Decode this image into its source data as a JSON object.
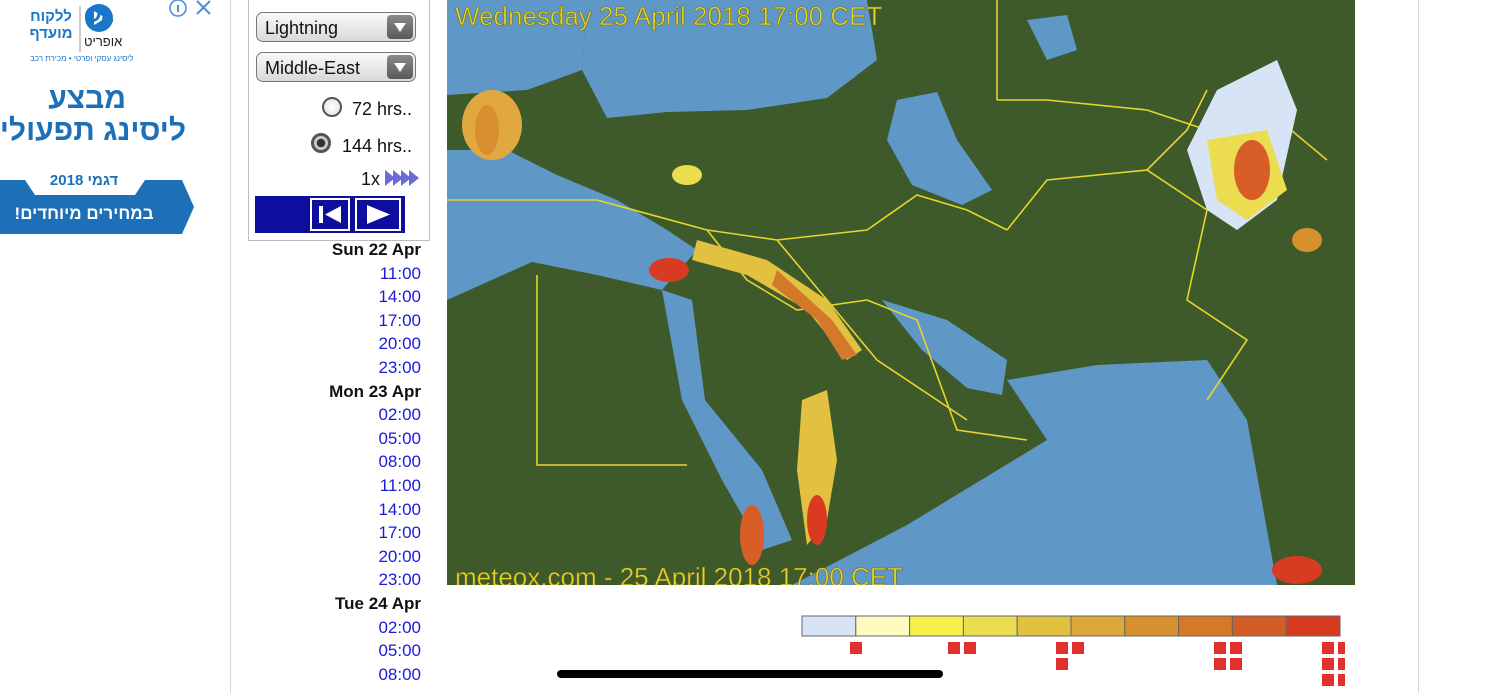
{
  "ad": {
    "logo_mark": "OL",
    "brand_line1": "ללקוח",
    "brand_line2": "מועדף",
    "logo_name": "אופריט",
    "tagline": "ליסינג עסקי ופרטי • מכירת רכב",
    "headline1": "מבצע",
    "headline2": "ליסינג תפעולי",
    "banner1": "דגמי 2018",
    "banner2": "במחירים מיוחדים!"
  },
  "controls": {
    "layer": "Lightning",
    "region": "Middle-East",
    "option_72": "72 hrs..",
    "option_144": "144 hrs..",
    "speed": "1x"
  },
  "timeline": [
    {
      "day": "Sun 22 Apr",
      "times": [
        "11:00",
        "14:00",
        "17:00",
        "20:00",
        "23:00"
      ]
    },
    {
      "day": "Mon 23 Apr",
      "times": [
        "02:00",
        "05:00",
        "08:00",
        "11:00",
        "14:00",
        "17:00",
        "20:00",
        "23:00"
      ]
    },
    {
      "day": "Tue 24 Apr",
      "times": [
        "02:00",
        "05:00",
        "08:00"
      ]
    }
  ],
  "map": {
    "title": "Wednesday 25 April 2018 17:00 CET",
    "footer": "meteox.com - 25 April 2018 17:00 CET"
  },
  "legend": {
    "colors": [
      "#d6e4f5",
      "#fdfbc0",
      "#f5f04a",
      "#ecdc50",
      "#e2c040",
      "#dca83a",
      "#d8902f",
      "#d47829",
      "#d25d26",
      "#d83b22"
    ]
  }
}
